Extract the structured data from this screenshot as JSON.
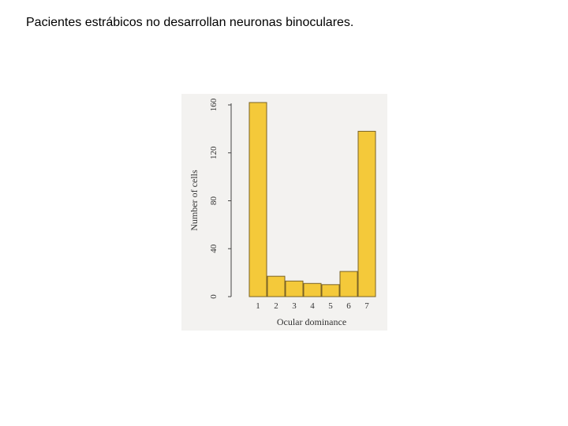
{
  "slide": {
    "title": "Pacientes estrábicos no desarrollan neuronas binoculares."
  },
  "chart_data": {
    "type": "bar",
    "categories": [
      "1",
      "2",
      "3",
      "4",
      "5",
      "6",
      "7"
    ],
    "values": [
      162,
      17,
      13,
      11,
      10,
      21,
      138
    ],
    "xlabel": "Ocular dominance",
    "ylabel": "Number of cells",
    "ylim": [
      0,
      160
    ],
    "yticks": [
      0,
      40,
      80,
      120,
      160
    ],
    "bar_color": "#f4c93a",
    "bar_edge_color": "#7a6326",
    "grid": false,
    "legend": "none"
  }
}
